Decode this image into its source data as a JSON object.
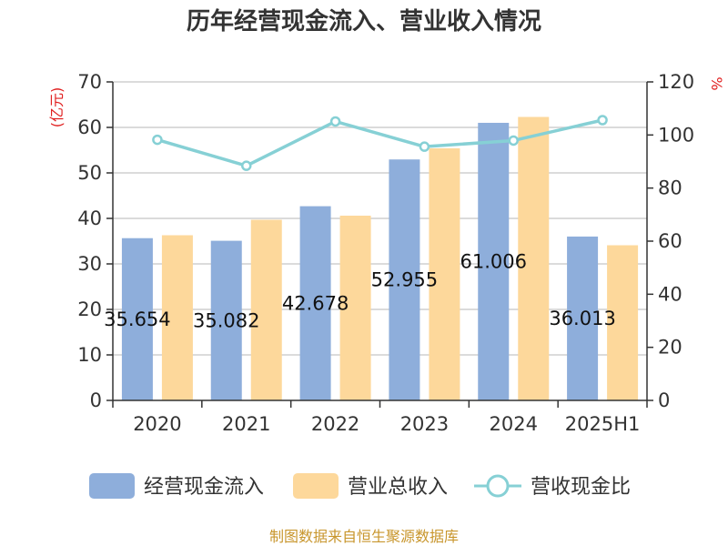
{
  "chart_data": {
    "type": "bar",
    "title": "历年经营现金流入、营业收入情况",
    "categories": [
      "2020",
      "2021",
      "2022",
      "2023",
      "2024",
      "2025H1"
    ],
    "y_left": {
      "unit_label": "(亿元)",
      "ylim": [
        0,
        70
      ],
      "ticks": [
        "0",
        "10",
        "20",
        "30",
        "40",
        "50",
        "60",
        "70"
      ]
    },
    "y_right": {
      "unit_label": "%",
      "ylim": [
        0,
        120
      ],
      "ticks": [
        "0",
        "20",
        "40",
        "60",
        "80",
        "100",
        "120"
      ]
    },
    "series": [
      {
        "name": "经营现金流入",
        "kind": "bar",
        "axis": "left",
        "color": "#8eaedb",
        "values": [
          35.654,
          35.082,
          42.678,
          52.955,
          61.006,
          36.013
        ],
        "labels": [
          "35.654",
          "35.082",
          "42.678",
          "52.955",
          "61.006",
          "36.013"
        ]
      },
      {
        "name": "营业总收入",
        "kind": "bar",
        "axis": "left",
        "color": "#fdd89b",
        "values": [
          36.3,
          39.7,
          40.6,
          55.4,
          62.3,
          34.1
        ]
      },
      {
        "name": "营收现金比",
        "kind": "line",
        "axis": "right",
        "color": "#86d0d5",
        "values": [
          98.2,
          88.4,
          105.1,
          95.6,
          97.9,
          105.6
        ]
      }
    ],
    "grid": true,
    "legend_position": "bottom"
  },
  "source": "制图数据来自恒生聚源数据库"
}
